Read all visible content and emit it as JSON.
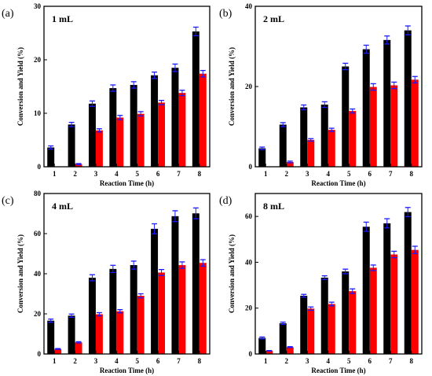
{
  "figure": {
    "xlabel": "Reaction Time (h)",
    "ylabel": "Conversion and Yield (%)",
    "colors": {
      "conversion": "#000000",
      "yield": "#ff0000",
      "error_bar": "#1a1aff",
      "axis": "#000000"
    }
  },
  "chart_data": [
    {
      "type": "bar",
      "panel": "(a)",
      "title": "1 mL",
      "xlabel": "Reaction Time (h)",
      "ylabel": "Conversion and Yield (%)",
      "categories": [
        "1",
        "2",
        "3",
        "4",
        "5",
        "6",
        "7",
        "8"
      ],
      "ylim": [
        0,
        30
      ],
      "yticks": [
        0,
        10,
        20,
        30
      ],
      "series": [
        {
          "key": "conversion",
          "values": [
            3.6,
            7.9,
            11.8,
            14.7,
            15.3,
            17.1,
            18.5,
            25.3
          ],
          "errors": [
            0.3,
            0.4,
            0.5,
            0.6,
            0.6,
            0.6,
            0.7,
            0.8
          ]
        },
        {
          "key": "yield",
          "values": [
            0,
            0.5,
            6.8,
            9.2,
            9.9,
            12.0,
            13.8,
            17.4
          ],
          "errors": [
            0,
            0.1,
            0.3,
            0.4,
            0.4,
            0.4,
            0.5,
            0.6
          ]
        }
      ]
    },
    {
      "type": "bar",
      "panel": "(b)",
      "title": "2 mL",
      "xlabel": "Reaction Time (h)",
      "ylabel": "Conversion and Yield (%)",
      "categories": [
        "1",
        "2",
        "3",
        "4",
        "5",
        "6",
        "7",
        "8"
      ],
      "ylim": [
        0,
        40
      ],
      "yticks": [
        0,
        20,
        40
      ],
      "series": [
        {
          "key": "conversion",
          "values": [
            4.6,
            10.5,
            14.8,
            15.5,
            25.0,
            29.3,
            31.6,
            34.0
          ],
          "errors": [
            0.3,
            0.5,
            0.6,
            0.7,
            0.8,
            1.0,
            1.0,
            1.1
          ]
        },
        {
          "key": "yield",
          "values": [
            0,
            1.2,
            6.7,
            9.2,
            13.9,
            19.9,
            20.3,
            21.7
          ],
          "errors": [
            0,
            0.2,
            0.3,
            0.4,
            0.5,
            0.8,
            0.8,
            0.8
          ]
        }
      ]
    },
    {
      "type": "bar",
      "panel": "(c)",
      "title": "4 mL",
      "xlabel": "Reaction Time (h)",
      "ylabel": "Conversion and Yield (%)",
      "categories": [
        "1",
        "2",
        "3",
        "4",
        "5",
        "6",
        "7",
        "8"
      ],
      "ylim": [
        0,
        80
      ],
      "yticks": [
        0,
        20,
        40,
        60,
        80
      ],
      "series": [
        {
          "key": "conversion",
          "values": [
            16.6,
            19.1,
            38.0,
            42.4,
            44.3,
            62.4,
            68.7,
            70.1
          ],
          "errors": [
            0.8,
            0.8,
            1.5,
            1.8,
            2.0,
            2.5,
            2.7,
            2.7
          ]
        },
        {
          "key": "yield",
          "values": [
            2.5,
            5.8,
            19.8,
            21.3,
            29.0,
            40.6,
            44.3,
            45.4
          ],
          "errors": [
            0.2,
            0.3,
            0.8,
            0.8,
            1.0,
            1.5,
            1.6,
            1.6
          ]
        }
      ]
    },
    {
      "type": "bar",
      "panel": "(d)",
      "title": "8 mL",
      "xlabel": "Reaction Time (h)",
      "ylabel": "Conversion and Yield (%)",
      "categories": [
        "1",
        "2",
        "3",
        "4",
        "5",
        "6",
        "7",
        "8"
      ],
      "ylim": [
        0,
        70
      ],
      "yticks": [
        0,
        20,
        40,
        60
      ],
      "series": [
        {
          "key": "conversion",
          "values": [
            7.0,
            13.4,
            25.4,
            33.3,
            36.0,
            55.5,
            57.0,
            61.9
          ],
          "errors": [
            0.4,
            0.5,
            0.6,
            0.8,
            1.0,
            2.0,
            2.0,
            2.0
          ]
        },
        {
          "key": "yield",
          "values": [
            1.4,
            3.0,
            19.8,
            21.8,
            27.4,
            37.6,
            43.4,
            45.4
          ],
          "errors": [
            0.1,
            0.2,
            0.7,
            0.8,
            1.0,
            1.2,
            1.4,
            1.6
          ]
        }
      ]
    }
  ]
}
